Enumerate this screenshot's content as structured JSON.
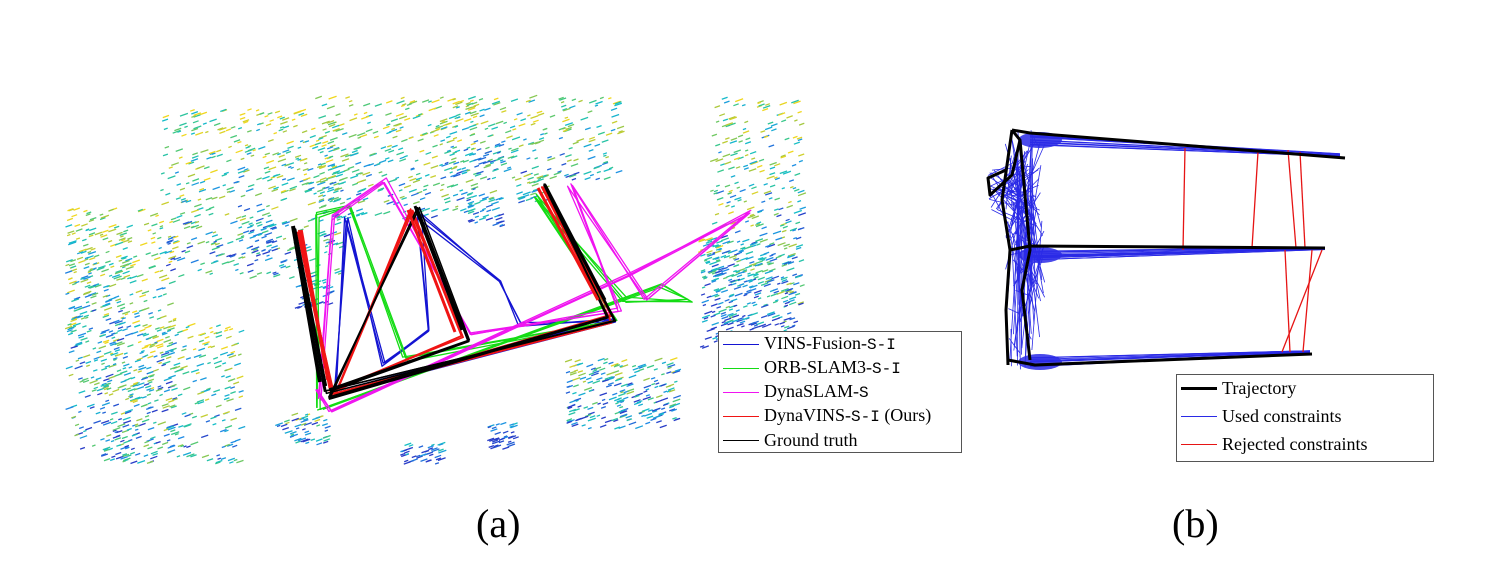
{
  "chart_data": [
    {
      "type": "line",
      "panel_label": "(a)",
      "title": "",
      "xlabel": "",
      "ylabel": "",
      "grid": false,
      "legend_placement": "bottom-right",
      "background": "lidar point cloud, colored by height (blue to yellow)",
      "series": [
        {
          "name_prefix": "VINS-Fusion-",
          "name_suffix": "S-I",
          "name_tail": "",
          "color": "#1414d2"
        },
        {
          "name_prefix": "ORB-SLAM3-",
          "name_suffix": "S-I",
          "name_tail": "",
          "color": "#14dc14"
        },
        {
          "name_prefix": "DynaSLAM-",
          "name_suffix": "S",
          "name_tail": "",
          "color": "#f014f0"
        },
        {
          "name_prefix": "DynaVINS-",
          "name_suffix": "S-I",
          "name_tail": " (Ours)",
          "color": "#f01414"
        },
        {
          "name_prefix": "Ground truth",
          "name_suffix": "",
          "name_tail": "",
          "color": "#000000"
        }
      ]
    },
    {
      "type": "line",
      "panel_label": "(b)",
      "title": "",
      "xlabel": "",
      "ylabel": "",
      "grid": false,
      "legend_placement": "bottom-right",
      "series": [
        {
          "name": "Trajectory",
          "color": "#000000"
        },
        {
          "name": "Used constraints",
          "color": "#2a2ae6"
        },
        {
          "name": "Rejected constraints",
          "color": "#e61414"
        }
      ]
    }
  ]
}
